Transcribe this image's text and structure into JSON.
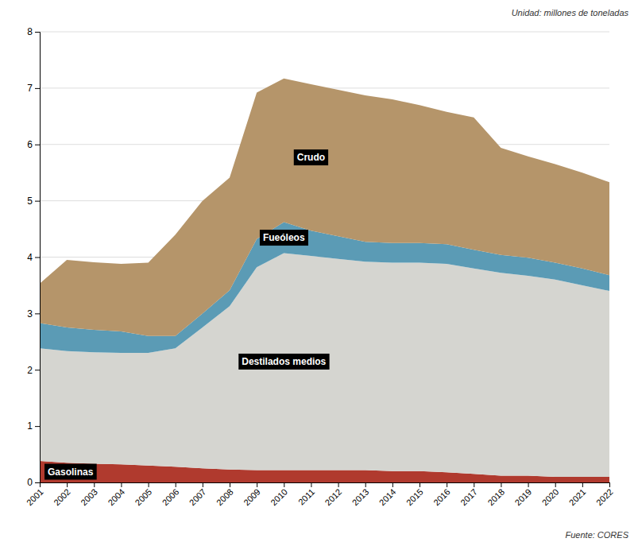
{
  "chart_data": {
    "type": "area",
    "stacked": true,
    "y_label": "Unidad: millones de toneladas",
    "annotations": [
      {
        "text": "Fuente: CORES"
      }
    ],
    "x": [
      2001,
      2002,
      2003,
      2004,
      2005,
      2006,
      2007,
      2008,
      2009,
      2010,
      2011,
      2012,
      2013,
      2014,
      2015,
      2016,
      2017,
      2018,
      2019,
      2020,
      2021,
      2022
    ],
    "series": [
      {
        "name": "Gasolinas",
        "color": "#b03a2e",
        "values": [
          0.38,
          0.35,
          0.33,
          0.32,
          0.3,
          0.28,
          0.25,
          0.23,
          0.22,
          0.22,
          0.22,
          0.22,
          0.22,
          0.2,
          0.2,
          0.18,
          0.15,
          0.12,
          0.12,
          0.1,
          0.1,
          0.1
        ]
      },
      {
        "name": "Destilados medios",
        "color": "#d5d5d0",
        "values": [
          2.0,
          1.98,
          1.98,
          1.98,
          2.0,
          2.1,
          2.5,
          2.9,
          3.6,
          3.85,
          3.8,
          3.75,
          3.7,
          3.7,
          3.7,
          3.7,
          3.65,
          3.6,
          3.55,
          3.5,
          3.4,
          3.3
        ]
      },
      {
        "name": "Fueóleos",
        "color": "#5b9bb5",
        "values": [
          0.45,
          0.42,
          0.4,
          0.38,
          0.3,
          0.22,
          0.25,
          0.28,
          0.5,
          0.55,
          0.45,
          0.4,
          0.35,
          0.35,
          0.35,
          0.35,
          0.33,
          0.32,
          0.32,
          0.3,
          0.3,
          0.28
        ]
      },
      {
        "name": "Crudo",
        "color": "#b5956a",
        "values": [
          0.7,
          1.2,
          1.2,
          1.2,
          1.3,
          1.8,
          2.0,
          2.0,
          2.6,
          2.55,
          2.6,
          2.6,
          2.6,
          2.55,
          2.45,
          2.35,
          2.35,
          1.9,
          1.8,
          1.75,
          1.7,
          1.65
        ]
      }
    ],
    "xlim": [
      2001,
      2022
    ],
    "xticks": [
      2001,
      2002,
      2003,
      2004,
      2005,
      2006,
      2007,
      2008,
      2009,
      2010,
      2011,
      2012,
      2013,
      2014,
      2015,
      2016,
      2017,
      2018,
      2019,
      2020,
      2021,
      2022
    ],
    "ylim": [
      0,
      8
    ],
    "yticks": [
      0,
      1,
      2,
      3,
      4,
      5,
      6,
      7,
      8
    ],
    "grid": true
  }
}
